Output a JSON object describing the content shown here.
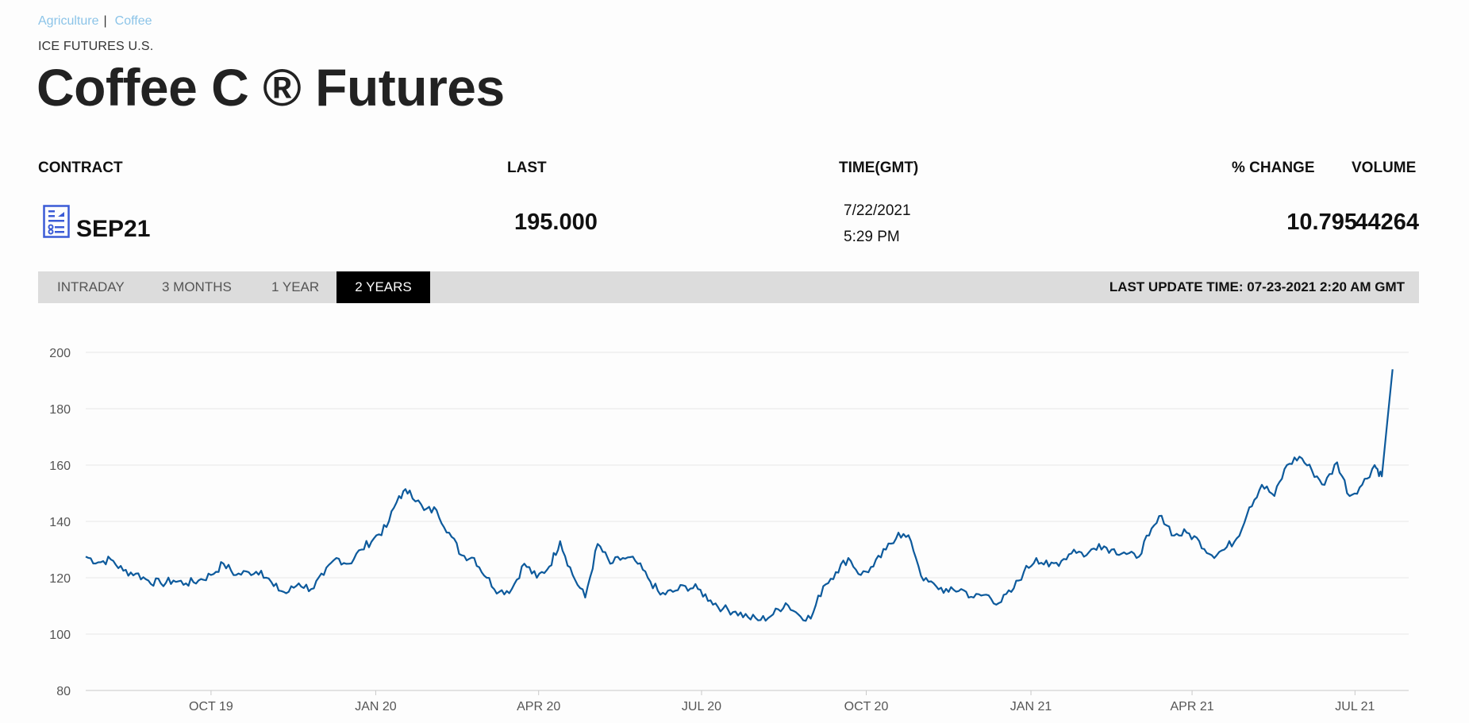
{
  "breadcrumb": {
    "items": [
      "Agriculture",
      "Coffee"
    ],
    "separator": "|"
  },
  "exchange": "ICE FUTURES U.S.",
  "title": "Coffee C ® Futures",
  "table": {
    "headers": {
      "contract": "CONTRACT",
      "last": "LAST",
      "time": "TIME(GMT)",
      "change": "% CHANGE",
      "volume": "VOLUME"
    },
    "row": {
      "contract_icon": "report-icon",
      "contract": "SEP21",
      "last": "195.000",
      "date": "7/22/2021",
      "time": "5:29 PM",
      "change": "10.795",
      "volume": "44264"
    }
  },
  "tabs": [
    {
      "label": "INTRADAY",
      "active": false
    },
    {
      "label": "3 MONTHS",
      "active": false
    },
    {
      "label": "1 YEAR",
      "active": false
    },
    {
      "label": "2 YEARS",
      "active": true
    }
  ],
  "last_update": "LAST UPDATE TIME: 07-23-2021 2:20 AM GMT",
  "colors": {
    "line": "#0d5a9c",
    "link": "#8cc4e8",
    "tabbar": "#dcdcdc",
    "active_tab": "#000000"
  },
  "chart_data": {
    "type": "line",
    "title": "",
    "xlabel": "",
    "ylabel": "",
    "ylim": [
      80,
      200
    ],
    "yticks": [
      80,
      100,
      120,
      140,
      160,
      180,
      200
    ],
    "xticks": [
      "OCT 19",
      "JAN 20",
      "APR 20",
      "JUL 20",
      "OCT 20",
      "JAN 21",
      "APR 21",
      "JUL 21"
    ],
    "xlim": [
      "2019-07-23",
      "2021-07-31"
    ],
    "xtick_dates": [
      "2019-10-01",
      "2020-01-01",
      "2020-04-01",
      "2020-07-01",
      "2020-10-01",
      "2021-01-01",
      "2021-04-01",
      "2021-07-01"
    ],
    "grid": true,
    "series": [
      {
        "points": [
          [
            "2019-07-23",
            127.5
          ],
          [
            "2019-07-30",
            125.5
          ],
          [
            "2019-08-06",
            126.5
          ],
          [
            "2019-08-13",
            122.5
          ],
          [
            "2019-08-20",
            121.5
          ],
          [
            "2019-08-27",
            119.0
          ],
          [
            "2019-09-03",
            118.0
          ],
          [
            "2019-09-10",
            119.0
          ],
          [
            "2019-09-17",
            118.0
          ],
          [
            "2019-09-24",
            119.0
          ],
          [
            "2019-10-01",
            121.0
          ],
          [
            "2019-10-08",
            125.0
          ],
          [
            "2019-10-15",
            121.0
          ],
          [
            "2019-10-22",
            122.0
          ],
          [
            "2019-10-29",
            122.5
          ],
          [
            "2019-11-05",
            117.0
          ],
          [
            "2019-11-12",
            114.5
          ],
          [
            "2019-11-19",
            118.0
          ],
          [
            "2019-11-26",
            116.0
          ],
          [
            "2019-12-03",
            121.0
          ],
          [
            "2019-12-10",
            127.0
          ],
          [
            "2019-12-17",
            125.0
          ],
          [
            "2019-12-24",
            130.0
          ],
          [
            "2019-12-31",
            134.0
          ],
          [
            "2020-01-07",
            138.0
          ],
          [
            "2020-01-14",
            149.0
          ],
          [
            "2020-01-20",
            151.0
          ],
          [
            "2020-01-28",
            144.0
          ],
          [
            "2020-02-04",
            144.0
          ],
          [
            "2020-02-11",
            136.0
          ],
          [
            "2020-02-18",
            128.0
          ],
          [
            "2020-02-25",
            127.0
          ],
          [
            "2020-03-03",
            120.0
          ],
          [
            "2020-03-10",
            115.0
          ],
          [
            "2020-03-17",
            116.0
          ],
          [
            "2020-03-24",
            125.0
          ],
          [
            "2020-03-31",
            120.0
          ],
          [
            "2020-04-07",
            124.0
          ],
          [
            "2020-04-13",
            133.0
          ],
          [
            "2020-04-20",
            121.0
          ],
          [
            "2020-04-27",
            113.0
          ],
          [
            "2020-05-04",
            132.0
          ],
          [
            "2020-05-11",
            125.0
          ],
          [
            "2020-05-18",
            127.0
          ],
          [
            "2020-05-25",
            126.0
          ],
          [
            "2020-06-01",
            120.0
          ],
          [
            "2020-06-08",
            114.0
          ],
          [
            "2020-06-15",
            115.0
          ],
          [
            "2020-06-22",
            117.0
          ],
          [
            "2020-06-29",
            116.0
          ],
          [
            "2020-07-06",
            112.0
          ],
          [
            "2020-07-13",
            109.0
          ],
          [
            "2020-07-20",
            108.0
          ],
          [
            "2020-07-27",
            106.0
          ],
          [
            "2020-08-03",
            105.0
          ],
          [
            "2020-08-10",
            107.0
          ],
          [
            "2020-08-17",
            111.0
          ],
          [
            "2020-08-24",
            107.0
          ],
          [
            "2020-08-31",
            105.5
          ],
          [
            "2020-09-07",
            117.0
          ],
          [
            "2020-09-14",
            122.0
          ],
          [
            "2020-09-21",
            127.0
          ],
          [
            "2020-09-28",
            121.0
          ],
          [
            "2020-10-05",
            124.0
          ],
          [
            "2020-10-12",
            130.0
          ],
          [
            "2020-10-19",
            136.0
          ],
          [
            "2020-10-26",
            133.0
          ],
          [
            "2020-11-02",
            119.0
          ],
          [
            "2020-11-09",
            117.0
          ],
          [
            "2020-11-16",
            115.0
          ],
          [
            "2020-11-23",
            116.0
          ],
          [
            "2020-11-30",
            113.0
          ],
          [
            "2020-12-07",
            114.0
          ],
          [
            "2020-12-14",
            111.0
          ],
          [
            "2020-12-21",
            115.0
          ],
          [
            "2020-12-28",
            122.0
          ],
          [
            "2021-01-04",
            127.0
          ],
          [
            "2021-01-11",
            124.0
          ],
          [
            "2021-01-18",
            126.0
          ],
          [
            "2021-01-25",
            130.0
          ],
          [
            "2021-02-01",
            128.0
          ],
          [
            "2021-02-08",
            132.0
          ],
          [
            "2021-02-15",
            130.0
          ],
          [
            "2021-02-22",
            129.0
          ],
          [
            "2021-03-01",
            127.0
          ],
          [
            "2021-03-08",
            135.0
          ],
          [
            "2021-03-15",
            142.0
          ],
          [
            "2021-03-22",
            135.0
          ],
          [
            "2021-03-29",
            136.0
          ],
          [
            "2021-04-05",
            133.0
          ],
          [
            "2021-04-12",
            128.0
          ],
          [
            "2021-04-19",
            130.0
          ],
          [
            "2021-04-26",
            134.0
          ],
          [
            "2021-05-03",
            145.0
          ],
          [
            "2021-05-10",
            153.0
          ],
          [
            "2021-05-17",
            149.0
          ],
          [
            "2021-05-24",
            160.0
          ],
          [
            "2021-05-31",
            163.0
          ],
          [
            "2021-06-07",
            158.0
          ],
          [
            "2021-06-14",
            153.0
          ],
          [
            "2021-06-21",
            161.0
          ],
          [
            "2021-06-28",
            149.0
          ],
          [
            "2021-07-05",
            153.0
          ],
          [
            "2021-07-12",
            160.0
          ],
          [
            "2021-07-16",
            156.0
          ],
          [
            "2021-07-22",
            194.0
          ]
        ]
      }
    ]
  }
}
